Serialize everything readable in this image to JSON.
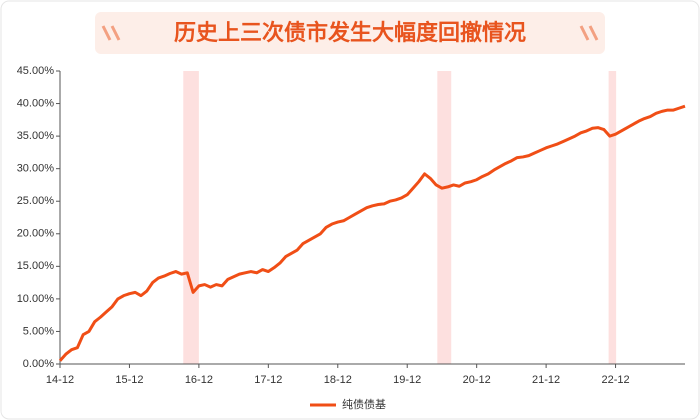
{
  "chart_data": {
    "type": "line",
    "title": "历史上三次债市发生大幅度回撤情况",
    "categories": [
      "14-12",
      null,
      null,
      null,
      null,
      null,
      null,
      null,
      null,
      null,
      null,
      null,
      "15-12",
      null,
      null,
      null,
      null,
      null,
      null,
      null,
      null,
      null,
      null,
      null,
      "16-12",
      null,
      null,
      null,
      null,
      null,
      null,
      null,
      null,
      null,
      null,
      null,
      "17-12",
      null,
      null,
      null,
      null,
      null,
      null,
      null,
      null,
      null,
      null,
      null,
      "18-12",
      null,
      null,
      null,
      null,
      null,
      null,
      null,
      null,
      null,
      null,
      null,
      "19-12",
      null,
      null,
      null,
      null,
      null,
      null,
      null,
      null,
      null,
      null,
      null,
      "20-12",
      null,
      null,
      null,
      null,
      null,
      null,
      null,
      null,
      null,
      null,
      null,
      "21-12",
      null,
      null,
      null,
      null,
      null,
      null,
      null,
      null,
      null,
      null,
      null,
      "22-12",
      null,
      null,
      null,
      null,
      null,
      null,
      null,
      null,
      null,
      null,
      null,
      null
    ],
    "series": [
      {
        "name": "纯债债基",
        "color": "#f04e16",
        "values": [
          0.5,
          1.5,
          2.2,
          2.5,
          4.5,
          5.0,
          6.5,
          7.2,
          8.0,
          8.8,
          10.0,
          10.5,
          10.8,
          11.0,
          10.5,
          11.2,
          12.5,
          13.2,
          13.5,
          13.9,
          14.2,
          13.8,
          14.0,
          11.0,
          12.0,
          12.2,
          11.8,
          12.2,
          12.0,
          13.0,
          13.4,
          13.8,
          14.0,
          14.2,
          14.0,
          14.5,
          14.2,
          14.8,
          15.5,
          16.5,
          17.0,
          17.5,
          18.5,
          19.0,
          19.5,
          20.0,
          21.0,
          21.5,
          21.8,
          22.0,
          22.5,
          23.0,
          23.5,
          24.0,
          24.3,
          24.5,
          24.6,
          25.0,
          25.2,
          25.5,
          26.0,
          27.0,
          28.0,
          29.2,
          28.5,
          27.5,
          27.0,
          27.2,
          27.5,
          27.3,
          27.8,
          28.0,
          28.3,
          28.8,
          29.2,
          29.8,
          30.3,
          30.8,
          31.2,
          31.7,
          31.8,
          32.0,
          32.4,
          32.8,
          33.2,
          33.5,
          33.8,
          34.2,
          34.6,
          35.0,
          35.5,
          35.8,
          36.2,
          36.3,
          36.0,
          35.0,
          35.3,
          35.8,
          36.3,
          36.8,
          37.3,
          37.7,
          38.0,
          38.5,
          38.8,
          39.0,
          39.0,
          39.3,
          39.6
        ]
      }
    ],
    "highlight_periods": [
      [
        21.3,
        24.0
      ],
      [
        65.2,
        67.6
      ],
      [
        94.8,
        96.1
      ]
    ],
    "highlight_color": "#fde0df",
    "ylim": [
      0,
      45
    ],
    "yticks": [
      {
        "value": 0,
        "label": "0.00%"
      },
      {
        "value": 5,
        "label": "5.00%"
      },
      {
        "value": 10,
        "label": "10.00%"
      },
      {
        "value": 15,
        "label": "15.00%"
      },
      {
        "value": 20,
        "label": "20.00%"
      },
      {
        "value": 25,
        "label": "25.00%"
      },
      {
        "value": 30,
        "label": "30.00%"
      },
      {
        "value": 35,
        "label": "35.00%"
      },
      {
        "value": 40,
        "label": "40.00%"
      },
      {
        "value": 45,
        "label": "45.00%"
      }
    ],
    "grid": false,
    "legend": "bottom"
  }
}
